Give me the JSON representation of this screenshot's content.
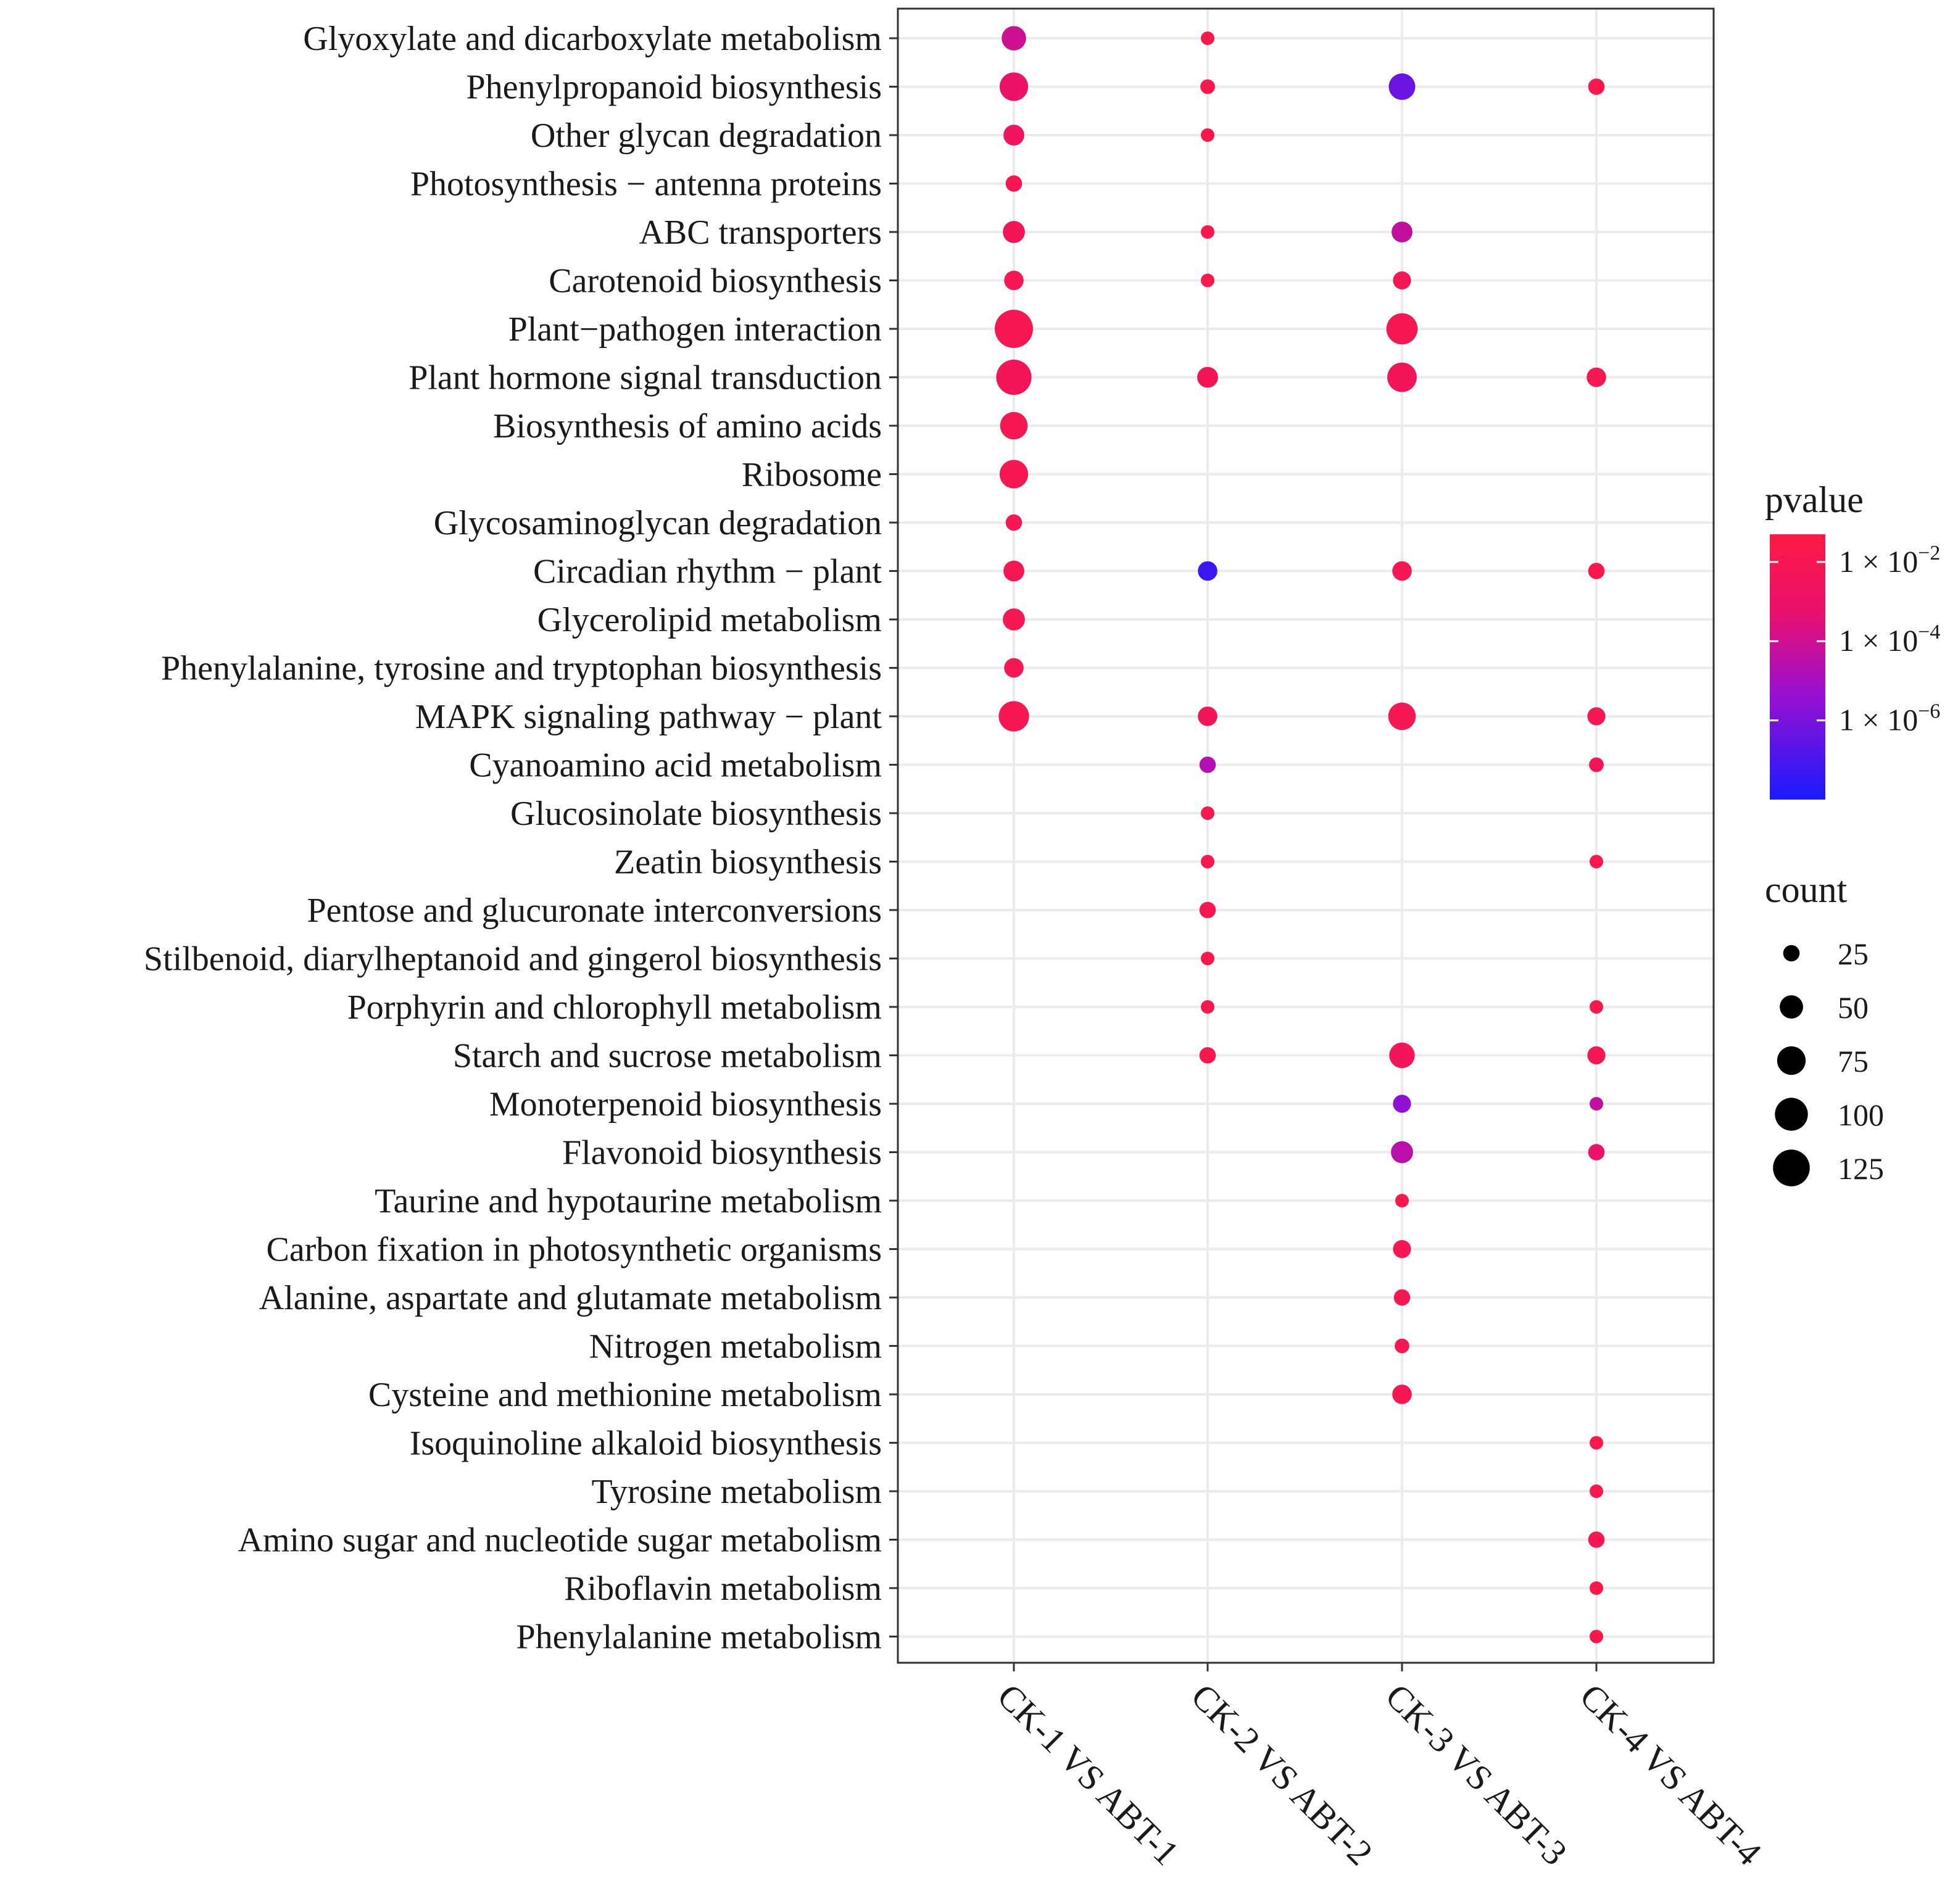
{
  "chart_data": {
    "type": "scatter",
    "subtype": "bubble",
    "x_categories": [
      "CK-1 VS ABT-1",
      "CK-2 VS ABT-2",
      "CK-3 VS ABT-3",
      "CK-4 VS ABT-4"
    ],
    "y_categories": [
      "Glyoxylate and dicarboxylate metabolism",
      "Phenylpropanoid biosynthesis",
      "Other glycan degradation",
      "Photosynthesis − antenna proteins",
      "ABC transporters",
      "Carotenoid biosynthesis",
      "Plant−pathogen interaction",
      "Plant hormone signal transduction",
      "Biosynthesis of amino acids",
      "Ribosome",
      "Glycosaminoglycan degradation",
      "Circadian rhythm − plant",
      "Glycerolipid metabolism",
      "Phenylalanine, tyrosine and tryptophan biosynthesis",
      "MAPK signaling pathway − plant",
      "Cyanoamino acid metabolism",
      "Glucosinolate biosynthesis",
      "Zeatin biosynthesis",
      "Pentose and glucuronate interconversions",
      "Stilbenoid, diarylheptanoid and gingerol biosynthesis",
      "Porphyrin and chlorophyll metabolism",
      "Starch and sucrose metabolism",
      "Monoterpenoid biosynthesis",
      "Flavonoid biosynthesis",
      "Taurine and hypotaurine metabolism",
      "Carbon fixation in photosynthetic organisms",
      "Alanine, aspartate and glutamate metabolism",
      "Nitrogen metabolism",
      "Cysteine and methionine metabolism",
      "Isoquinoline alkaloid biosynthesis",
      "Tyrosine metabolism",
      "Amino sugar and nucleotide sugar metabolism",
      "Riboflavin metabolism",
      "Phenylalanine metabolism"
    ],
    "points": [
      {
        "x": "CK-1 VS ABT-1",
        "y": "Glyoxylate and dicarboxylate metabolism",
        "count": 55,
        "pvalue": 0.0001
      },
      {
        "x": "CK-2 VS ABT-2",
        "y": "Glyoxylate and dicarboxylate metabolism",
        "count": 12,
        "pvalue": 0.03
      },
      {
        "x": "CK-1 VS ABT-1",
        "y": "Phenylpropanoid biosynthesis",
        "count": 75,
        "pvalue": 0.001
      },
      {
        "x": "CK-2 VS ABT-2",
        "y": "Phenylpropanoid biosynthesis",
        "count": 20,
        "pvalue": 0.02
      },
      {
        "x": "CK-3 VS ABT-3",
        "y": "Phenylpropanoid biosynthesis",
        "count": 65,
        "pvalue": 5e-07
      },
      {
        "x": "CK-4 VS ABT-4",
        "y": "Phenylpropanoid biosynthesis",
        "count": 25,
        "pvalue": 0.02
      },
      {
        "x": "CK-1 VS ABT-1",
        "y": "Other glycan degradation",
        "count": 40,
        "pvalue": 0.003
      },
      {
        "x": "CK-2 VS ABT-2",
        "y": "Other glycan degradation",
        "count": 8,
        "pvalue": 0.03
      },
      {
        "x": "CK-1 VS ABT-1",
        "y": "Photosynthesis − antenna proteins",
        "count": 25,
        "pvalue": 0.01
      },
      {
        "x": "CK-1 VS ABT-1",
        "y": "ABC transporters",
        "count": 45,
        "pvalue": 0.005
      },
      {
        "x": "CK-2 VS ABT-2",
        "y": "ABC transporters",
        "count": 12,
        "pvalue": 0.02
      },
      {
        "x": "CK-3 VS ABT-3",
        "y": "ABC transporters",
        "count": 40,
        "pvalue": 5e-05
      },
      {
        "x": "CK-1 VS ABT-1",
        "y": "Carotenoid biosynthesis",
        "count": 35,
        "pvalue": 0.01
      },
      {
        "x": "CK-2 VS ABT-2",
        "y": "Carotenoid biosynthesis",
        "count": 12,
        "pvalue": 0.02
      },
      {
        "x": "CK-3 VS ABT-3",
        "y": "Carotenoid biosynthesis",
        "count": 30,
        "pvalue": 0.01
      },
      {
        "x": "CK-1 VS ABT-1",
        "y": "Plant−pathogen interaction",
        "count": 135,
        "pvalue": 0.01
      },
      {
        "x": "CK-3 VS ABT-3",
        "y": "Plant−pathogen interaction",
        "count": 90,
        "pvalue": 0.01
      },
      {
        "x": "CK-1 VS ABT-1",
        "y": "Plant hormone signal transduction",
        "count": 115,
        "pvalue": 0.005
      },
      {
        "x": "CK-2 VS ABT-2",
        "y": "Plant hormone signal transduction",
        "count": 40,
        "pvalue": 0.005
      },
      {
        "x": "CK-3 VS ABT-3",
        "y": "Plant hormone signal transduction",
        "count": 80,
        "pvalue": 0.005
      },
      {
        "x": "CK-4 VS ABT-4",
        "y": "Plant hormone signal transduction",
        "count": 35,
        "pvalue": 0.01
      },
      {
        "x": "CK-1 VS ABT-1",
        "y": "Biosynthesis of amino acids",
        "count": 70,
        "pvalue": 0.01
      },
      {
        "x": "CK-1 VS ABT-1",
        "y": "Ribosome",
        "count": 75,
        "pvalue": 0.01
      },
      {
        "x": "CK-1 VS ABT-1",
        "y": "Glycosaminoglycan degradation",
        "count": 25,
        "pvalue": 0.01
      },
      {
        "x": "CK-1 VS ABT-1",
        "y": "Circadian rhythm − plant",
        "count": 40,
        "pvalue": 0.01
      },
      {
        "x": "CK-2 VS ABT-2",
        "y": "Circadian rhythm − plant",
        "count": 35,
        "pvalue": 5e-08
      },
      {
        "x": "CK-3 VS ABT-3",
        "y": "Circadian rhythm − plant",
        "count": 35,
        "pvalue": 0.01
      },
      {
        "x": "CK-4 VS ABT-4",
        "y": "Circadian rhythm − plant",
        "count": 25,
        "pvalue": 0.02
      },
      {
        "x": "CK-1 VS ABT-1",
        "y": "Glycerolipid metabolism",
        "count": 45,
        "pvalue": 0.01
      },
      {
        "x": "CK-1 VS ABT-1",
        "y": "Phenylalanine, tyrosine and tryptophan biosynthesis",
        "count": 35,
        "pvalue": 0.01
      },
      {
        "x": "CK-1 VS ABT-1",
        "y": "MAPK signaling pathway − plant",
        "count": 85,
        "pvalue": 0.01
      },
      {
        "x": "CK-2 VS ABT-2",
        "y": "MAPK signaling pathway − plant",
        "count": 35,
        "pvalue": 0.005
      },
      {
        "x": "CK-3 VS ABT-3",
        "y": "MAPK signaling pathway − plant",
        "count": 70,
        "pvalue": 0.01
      },
      {
        "x": "CK-4 VS ABT-4",
        "y": "MAPK signaling pathway − plant",
        "count": 30,
        "pvalue": 0.01
      },
      {
        "x": "CK-2 VS ABT-2",
        "y": "Cyanoamino acid metabolism",
        "count": 25,
        "pvalue": 2e-05
      },
      {
        "x": "CK-4 VS ABT-4",
        "y": "Cyanoamino acid metabolism",
        "count": 20,
        "pvalue": 0.005
      },
      {
        "x": "CK-2 VS ABT-2",
        "y": "Glucosinolate biosynthesis",
        "count": 10,
        "pvalue": 0.02
      },
      {
        "x": "CK-2 VS ABT-2",
        "y": "Zeatin biosynthesis",
        "count": 15,
        "pvalue": 0.02
      },
      {
        "x": "CK-4 VS ABT-4",
        "y": "Zeatin biosynthesis",
        "count": 15,
        "pvalue": 0.02
      },
      {
        "x": "CK-2 VS ABT-2",
        "y": "Pentose and glucuronate interconversions",
        "count": 25,
        "pvalue": 0.01
      },
      {
        "x": "CK-2 VS ABT-2",
        "y": "Stilbenoid, diarylheptanoid and gingerol biosynthesis",
        "count": 8,
        "pvalue": 0.03
      },
      {
        "x": "CK-2 VS ABT-2",
        "y": "Porphyrin and chlorophyll metabolism",
        "count": 10,
        "pvalue": 0.02
      },
      {
        "x": "CK-4 VS ABT-4",
        "y": "Porphyrin and chlorophyll metabolism",
        "count": 15,
        "pvalue": 0.02
      },
      {
        "x": "CK-2 VS ABT-2",
        "y": "Starch and sucrose metabolism",
        "count": 25,
        "pvalue": 0.02
      },
      {
        "x": "CK-3 VS ABT-3",
        "y": "Starch and sucrose metabolism",
        "count": 60,
        "pvalue": 0.005
      },
      {
        "x": "CK-4 VS ABT-4",
        "y": "Starch and sucrose metabolism",
        "count": 30,
        "pvalue": 0.01
      },
      {
        "x": "CK-3 VS ABT-3",
        "y": "Monoterpenoid biosynthesis",
        "count": 30,
        "pvalue": 3e-06
      },
      {
        "x": "CK-4 VS ABT-4",
        "y": "Monoterpenoid biosynthesis",
        "count": 12,
        "pvalue": 5e-05
      },
      {
        "x": "CK-3 VS ABT-3",
        "y": "Flavonoid biosynthesis",
        "count": 45,
        "pvalue": 3e-05
      },
      {
        "x": "CK-4 VS ABT-4",
        "y": "Flavonoid biosynthesis",
        "count": 25,
        "pvalue": 0.001
      },
      {
        "x": "CK-3 VS ABT-3",
        "y": "Taurine and hypotaurine metabolism",
        "count": 15,
        "pvalue": 0.02
      },
      {
        "x": "CK-3 VS ABT-3",
        "y": "Carbon fixation in photosynthetic organisms",
        "count": 30,
        "pvalue": 0.01
      },
      {
        "x": "CK-3 VS ABT-3",
        "y": "Alanine, aspartate and glutamate metabolism",
        "count": 25,
        "pvalue": 0.01
      },
      {
        "x": "CK-3 VS ABT-3",
        "y": "Nitrogen metabolism",
        "count": 20,
        "pvalue": 0.01
      },
      {
        "x": "CK-3 VS ABT-3",
        "y": "Cysteine and methionine metabolism",
        "count": 35,
        "pvalue": 0.01
      },
      {
        "x": "CK-4 VS ABT-4",
        "y": "Isoquinoline alkaloid biosynthesis",
        "count": 15,
        "pvalue": 0.02
      },
      {
        "x": "CK-4 VS ABT-4",
        "y": "Tyrosine metabolism",
        "count": 15,
        "pvalue": 0.02
      },
      {
        "x": "CK-4 VS ABT-4",
        "y": "Amino sugar and nucleotide sugar metabolism",
        "count": 25,
        "pvalue": 0.01
      },
      {
        "x": "CK-4 VS ABT-4",
        "y": "Riboflavin metabolism",
        "count": 8,
        "pvalue": 0.03
      },
      {
        "x": "CK-4 VS ABT-4",
        "y": "Phenylalanine metabolism",
        "count": 15,
        "pvalue": 0.02
      }
    ],
    "color_legend": {
      "title": "pvalue",
      "scale": "log10",
      "low_color": "#1a1aff",
      "high_color": "#ff1a44",
      "range": [
        1e-08,
        0.05
      ],
      "ticks": [
        {
          "value": 0.01,
          "base": "1 × 10",
          "exp": "−2"
        },
        {
          "value": 0.0001,
          "base": "1 × 10",
          "exp": "−4"
        },
        {
          "value": 1e-06,
          "base": "1 × 10",
          "exp": "−6"
        }
      ]
    },
    "size_legend": {
      "title": "count",
      "values": [
        25,
        50,
        75,
        100,
        125
      ],
      "labels": [
        "25",
        "50",
        "75",
        "100",
        "125"
      ]
    },
    "grid": true,
    "xlabel": "",
    "ylabel": ""
  }
}
